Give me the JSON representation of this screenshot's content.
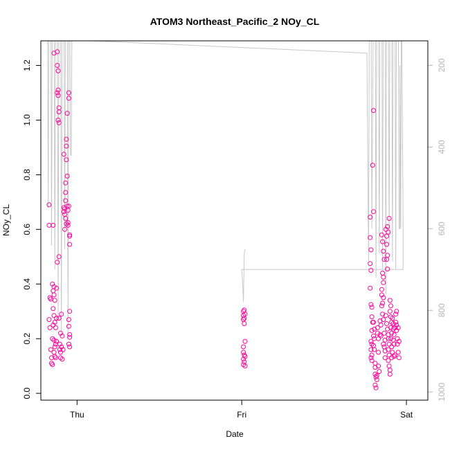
{
  "chart_data": {
    "type": "scatter",
    "title": "ATOM3 Northeast_Pacific_2 NOy_CL",
    "xlabel": "Date",
    "ylabel": "NOy_CL",
    "x_ticks": [
      {
        "value": 1,
        "label": "Thu"
      },
      {
        "value": 2,
        "label": "Fri"
      },
      {
        "value": 3,
        "label": "Sat"
      }
    ],
    "xlim": [
      0.78,
      3.13
    ],
    "ylim": [
      -0.025,
      1.29
    ],
    "y_ticks": [
      0.0,
      0.2,
      0.4,
      0.6,
      0.8,
      1.0,
      1.2
    ],
    "y_tick_labels": [
      "0.0",
      "0.2",
      "0.4",
      "0.6",
      "0.8",
      "1.0",
      "1.2"
    ],
    "y2_ticks": [
      200,
      400,
      600,
      800,
      1000
    ],
    "y2_tick_labels": [
      "200",
      "400",
      "600",
      "800",
      "1000"
    ],
    "y2_range_top_bottom": [
      140,
      1020
    ],
    "grid": false,
    "colors": {
      "points": "#ff0099",
      "secondary_line": "#c8c8c8",
      "secondary_axis": "#b4b4b4"
    },
    "series": [
      {
        "points": [
          [
            0.83,
            0.69
          ],
          [
            0.83,
            0.615
          ],
          [
            0.835,
            0.35
          ],
          [
            0.84,
            0.345
          ],
          [
            0.83,
            0.27
          ],
          [
            0.835,
            0.24
          ],
          [
            0.84,
            0.16
          ],
          [
            0.845,
            0.13
          ],
          [
            0.845,
            0.11
          ],
          [
            0.85,
            0.105
          ],
          [
            0.85,
            0.4
          ],
          [
            0.855,
            0.375
          ],
          [
            0.86,
            0.39
          ],
          [
            0.86,
            0.36
          ],
          [
            0.865,
            0.34
          ],
          [
            0.855,
            0.31
          ],
          [
            0.86,
            0.285
          ],
          [
            0.865,
            0.26
          ],
          [
            0.855,
            0.25
          ],
          [
            0.85,
            0.2
          ],
          [
            0.86,
            0.195
          ],
          [
            0.865,
            0.17
          ],
          [
            0.86,
            0.15
          ],
          [
            0.865,
            0.135
          ],
          [
            0.87,
            0.13
          ],
          [
            0.855,
            0.615
          ],
          [
            0.86,
            1.245
          ],
          [
            0.87,
            0.18
          ],
          [
            0.875,
            0.385
          ],
          [
            0.875,
            0.275
          ],
          [
            0.87,
            0.24
          ],
          [
            0.875,
            0.19
          ],
          [
            0.88,
            1.25
          ],
          [
            0.88,
            1.2
          ],
          [
            0.885,
            1.18
          ],
          [
            0.885,
            1.11
          ],
          [
            0.88,
            1.1
          ],
          [
            0.885,
            1.09
          ],
          [
            0.89,
            1.045
          ],
          [
            0.89,
            1.03
          ],
          [
            0.885,
            1.0
          ],
          [
            0.89,
            0.99
          ],
          [
            0.89,
            0.5
          ],
          [
            0.88,
            0.48
          ],
          [
            0.895,
            0.18
          ],
          [
            0.895,
            0.16
          ],
          [
            0.9,
            0.15
          ],
          [
            0.9,
            0.13
          ],
          [
            0.89,
            0.275
          ],
          [
            0.9,
            0.22
          ],
          [
            0.905,
            0.17
          ],
          [
            0.91,
            0.125
          ],
          [
            0.905,
            0.29
          ],
          [
            0.91,
            0.21
          ],
          [
            0.915,
            0.16
          ],
          [
            0.92,
            0.875
          ],
          [
            0.92,
            0.68
          ],
          [
            0.925,
            0.675
          ],
          [
            0.92,
            0.665
          ],
          [
            0.925,
            0.655
          ],
          [
            0.93,
            0.77
          ],
          [
            0.93,
            0.735
          ],
          [
            0.93,
            0.705
          ],
          [
            0.935,
            0.93
          ],
          [
            0.935,
            0.905
          ],
          [
            0.935,
            0.855
          ],
          [
            0.94,
            1.025
          ],
          [
            0.94,
            0.795
          ],
          [
            0.94,
            0.685
          ],
          [
            0.945,
            0.625
          ],
          [
            0.945,
            0.615
          ],
          [
            0.95,
            1.1
          ],
          [
            0.95,
            1.08
          ],
          [
            0.95,
            0.685
          ],
          [
            0.955,
            0.58
          ],
          [
            0.955,
            0.575
          ],
          [
            0.955,
            0.545
          ],
          [
            0.955,
            0.3
          ],
          [
            0.95,
            0.27
          ],
          [
            0.95,
            0.245
          ],
          [
            0.955,
            0.215
          ],
          [
            0.955,
            0.205
          ],
          [
            0.95,
            0.18
          ],
          [
            0.955,
            0.17
          ],
          [
            0.925,
            0.6
          ],
          [
            0.93,
            0.64
          ],
          [
            0.935,
            0.62
          ],
          [
            0.945,
            0.67
          ],
          [
            2.01,
            0.3
          ],
          [
            2.015,
            0.305
          ],
          [
            2.01,
            0.285
          ],
          [
            2.015,
            0.275
          ],
          [
            2.01,
            0.27
          ],
          [
            2.02,
            0.29
          ],
          [
            2.015,
            0.255
          ],
          [
            2.02,
            0.19
          ],
          [
            2.01,
            0.17
          ],
          [
            2.01,
            0.15
          ],
          [
            2.015,
            0.14
          ],
          [
            2.02,
            0.135
          ],
          [
            2.01,
            0.125
          ],
          [
            2.015,
            0.115
          ],
          [
            2.01,
            0.105
          ],
          [
            2.02,
            0.1
          ],
          [
            2.78,
            0.645
          ],
          [
            2.78,
            0.57
          ],
          [
            2.785,
            0.525
          ],
          [
            2.78,
            0.475
          ],
          [
            2.785,
            0.45
          ],
          [
            2.78,
            0.385
          ],
          [
            2.785,
            0.325
          ],
          [
            2.79,
            0.315
          ],
          [
            2.795,
            0.835
          ],
          [
            2.8,
            1.035
          ],
          [
            2.8,
            0.665
          ],
          [
            2.79,
            0.28
          ],
          [
            2.795,
            0.26
          ],
          [
            2.79,
            0.23
          ],
          [
            2.785,
            0.19
          ],
          [
            2.79,
            0.18
          ],
          [
            2.785,
            0.16
          ],
          [
            2.79,
            0.14
          ],
          [
            2.785,
            0.13
          ],
          [
            2.79,
            0.12
          ],
          [
            2.8,
            0.26
          ],
          [
            2.805,
            0.235
          ],
          [
            2.8,
            0.21
          ],
          [
            2.805,
            0.2
          ],
          [
            2.8,
            0.175
          ],
          [
            2.805,
            0.16
          ],
          [
            2.81,
            0.11
          ],
          [
            2.81,
            0.095
          ],
          [
            2.81,
            0.07
          ],
          [
            2.815,
            0.06
          ],
          [
            2.81,
            0.03
          ],
          [
            2.815,
            0.02
          ],
          [
            2.82,
            0.065
          ],
          [
            2.82,
            0.05
          ],
          [
            2.825,
            0.24
          ],
          [
            2.825,
            0.22
          ],
          [
            2.83,
            0.2
          ],
          [
            2.83,
            0.15
          ],
          [
            2.83,
            0.1
          ],
          [
            2.835,
            0.08
          ],
          [
            2.84,
            0.265
          ],
          [
            2.845,
            0.25
          ],
          [
            2.84,
            0.215
          ],
          [
            2.845,
            0.21
          ],
          [
            2.85,
            0.38
          ],
          [
            2.85,
            0.36
          ],
          [
            2.855,
            0.33
          ],
          [
            2.85,
            0.32
          ],
          [
            2.855,
            0.44
          ],
          [
            2.86,
            0.425
          ],
          [
            2.86,
            0.405
          ],
          [
            2.86,
            0.35
          ],
          [
            2.855,
            0.29
          ],
          [
            2.86,
            0.27
          ],
          [
            2.865,
            0.22
          ],
          [
            2.87,
            0.195
          ],
          [
            2.86,
            0.18
          ],
          [
            2.865,
            0.17
          ],
          [
            2.87,
            0.155
          ],
          [
            2.87,
            0.13
          ],
          [
            2.875,
            0.6
          ],
          [
            2.88,
            0.575
          ],
          [
            2.88,
            0.545
          ],
          [
            2.885,
            0.505
          ],
          [
            2.88,
            0.49
          ],
          [
            2.885,
            0.455
          ],
          [
            2.875,
            0.285
          ],
          [
            2.88,
            0.255
          ],
          [
            2.885,
            0.235
          ],
          [
            2.89,
            0.215
          ],
          [
            2.89,
            0.2
          ],
          [
            2.895,
            0.18
          ],
          [
            2.89,
            0.16
          ],
          [
            2.895,
            0.14
          ],
          [
            2.89,
            0.12
          ],
          [
            2.895,
            0.1
          ],
          [
            2.9,
            0.085
          ],
          [
            2.9,
            0.07
          ],
          [
            2.885,
            0.61
          ],
          [
            2.89,
            0.59
          ],
          [
            2.895,
            0.64
          ],
          [
            2.9,
            0.34
          ],
          [
            2.905,
            0.32
          ],
          [
            2.9,
            0.3
          ],
          [
            2.905,
            0.28
          ],
          [
            2.91,
            0.26
          ],
          [
            2.905,
            0.24
          ],
          [
            2.91,
            0.22
          ],
          [
            2.905,
            0.2
          ],
          [
            2.91,
            0.17
          ],
          [
            2.915,
            0.15
          ],
          [
            2.91,
            0.13
          ],
          [
            2.915,
            0.275
          ],
          [
            2.92,
            0.255
          ],
          [
            2.92,
            0.235
          ],
          [
            2.925,
            0.215
          ],
          [
            2.92,
            0.195
          ],
          [
            2.925,
            0.18
          ],
          [
            2.93,
            0.24
          ],
          [
            2.93,
            0.14
          ],
          [
            2.925,
            0.135
          ],
          [
            2.935,
            0.29
          ],
          [
            2.935,
            0.26
          ],
          [
            2.94,
            0.3
          ],
          [
            2.94,
            0.25
          ],
          [
            2.94,
            0.23
          ],
          [
            2.945,
            0.2
          ],
          [
            2.945,
            0.18
          ],
          [
            2.95,
            0.24
          ],
          [
            2.95,
            0.15
          ],
          [
            2.955,
            0.19
          ],
          [
            2.955,
            0.13
          ],
          [
            2.85,
            0.58
          ],
          [
            2.855,
            0.555
          ],
          [
            2.86,
            0.52
          ],
          [
            2.865,
            0.49
          ]
        ]
      },
      {
        "line": [
          [
            0.82,
            -10
          ],
          [
            0.825,
            550
          ],
          [
            0.83,
            -10
          ],
          [
            0.84,
            -10
          ],
          [
            0.845,
            640
          ],
          [
            0.85,
            -10
          ],
          [
            0.86,
            -10
          ],
          [
            0.865,
            700
          ],
          [
            0.87,
            -10
          ],
          [
            0.88,
            -10
          ],
          [
            0.885,
            820
          ],
          [
            0.89,
            -10
          ],
          [
            0.9,
            -10
          ],
          [
            0.905,
            860
          ],
          [
            0.91,
            -10
          ],
          [
            0.92,
            -10
          ],
          [
            0.925,
            650
          ],
          [
            0.93,
            -10
          ],
          [
            0.94,
            -10
          ],
          [
            0.945,
            870
          ],
          [
            0.95,
            -10
          ],
          [
            0.955,
            -10
          ],
          [
            0.96,
            420
          ],
          [
            0.965,
            420
          ],
          [
            0.97,
            -10
          ],
          [
            0.98,
            -10
          ],
          [
            1.1,
            140
          ],
          [
            2.76,
            170
          ],
          [
            2.77,
            680
          ],
          [
            2.775,
            -10
          ],
          [
            2.785,
            -10
          ],
          [
            2.79,
            600
          ],
          [
            2.8,
            -10
          ],
          [
            2.81,
            -10
          ],
          [
            2.815,
            720
          ],
          [
            2.82,
            -10
          ],
          [
            2.83,
            -10
          ],
          [
            2.835,
            660
          ],
          [
            2.84,
            -10
          ],
          [
            2.85,
            -10
          ],
          [
            2.855,
            700
          ],
          [
            2.86,
            -10
          ],
          [
            2.87,
            -10
          ],
          [
            2.875,
            760
          ],
          [
            2.88,
            -10
          ],
          [
            2.89,
            -10
          ],
          [
            2.895,
            640
          ],
          [
            2.9,
            -10
          ],
          [
            2.91,
            -10
          ],
          [
            2.915,
            680
          ],
          [
            2.92,
            -10
          ],
          [
            2.93,
            -10
          ],
          [
            2.935,
            700
          ],
          [
            2.94,
            -10
          ],
          [
            2.95,
            -10
          ],
          [
            2.955,
            600
          ],
          [
            2.96,
            600
          ],
          [
            2.96,
            200
          ],
          [
            2.965,
            600
          ],
          [
            2.97,
            -10
          ],
          [
            2.98,
            600
          ],
          [
            2.98,
            700
          ],
          [
            2.0,
            700
          ],
          [
            2.005,
            730
          ],
          [
            2.01,
            780
          ],
          [
            2.015,
            660
          ],
          [
            2.02,
            650
          ]
        ]
      }
    ]
  }
}
